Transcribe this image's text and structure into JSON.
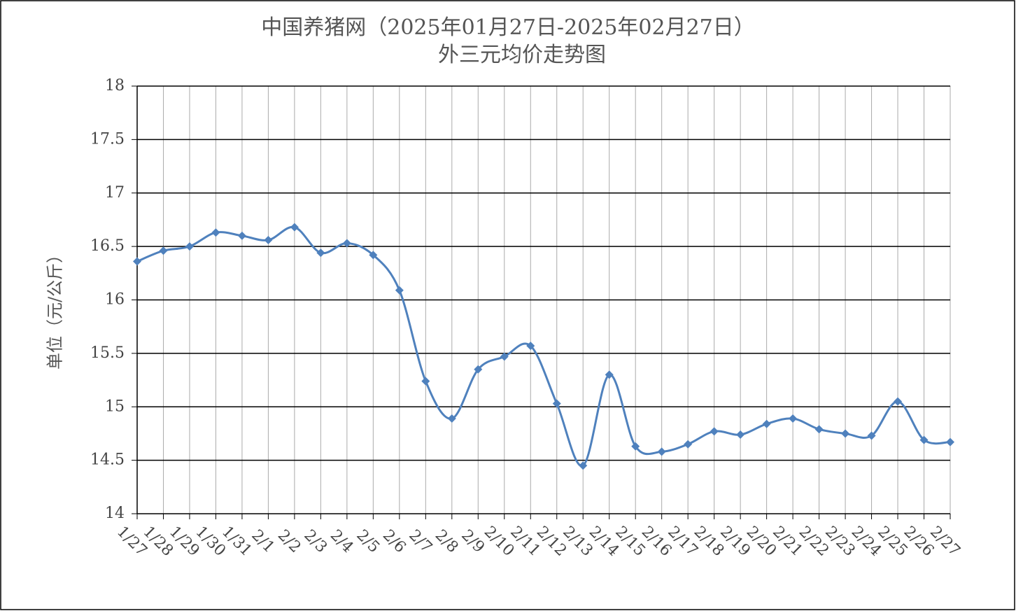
{
  "chart_data": {
    "type": "line",
    "title": "中国养猪网（2025年01月27日-2025年02月27日）",
    "subtitle": "外三元均价走势图",
    "y_label": "单位（元/公斤）",
    "categories": [
      "1/27",
      "1/28",
      "1/29",
      "1/30",
      "1/31",
      "2/1",
      "2/2",
      "2/3",
      "2/4",
      "2/5",
      "2/6",
      "2/7",
      "2/8",
      "2/9",
      "2/10",
      "2/11",
      "2/12",
      "2/13",
      "2/14",
      "2/15",
      "2/16",
      "2/17",
      "2/18",
      "2/19",
      "2/20",
      "2/21",
      "2/22",
      "2/23",
      "2/24",
      "2/25",
      "2/26",
      "2/27"
    ],
    "series": [
      {
        "name": "外三元均价",
        "color": "#4f81bd",
        "values": [
          16.36,
          16.46,
          16.5,
          16.63,
          16.6,
          16.56,
          16.68,
          16.44,
          16.53,
          16.42,
          16.09,
          15.24,
          14.89,
          15.35,
          15.47,
          15.57,
          15.03,
          14.45,
          15.3,
          14.63,
          14.58,
          14.65,
          14.77,
          14.74,
          14.84,
          14.89,
          14.79,
          14.75,
          14.73,
          15.05,
          14.69,
          14.67
        ]
      }
    ],
    "ylim": [
      14,
      18
    ],
    "yticks": [
      14,
      14.5,
      15,
      15.5,
      16,
      16.5,
      17,
      17.5,
      18
    ],
    "grid": true,
    "legend": false
  }
}
